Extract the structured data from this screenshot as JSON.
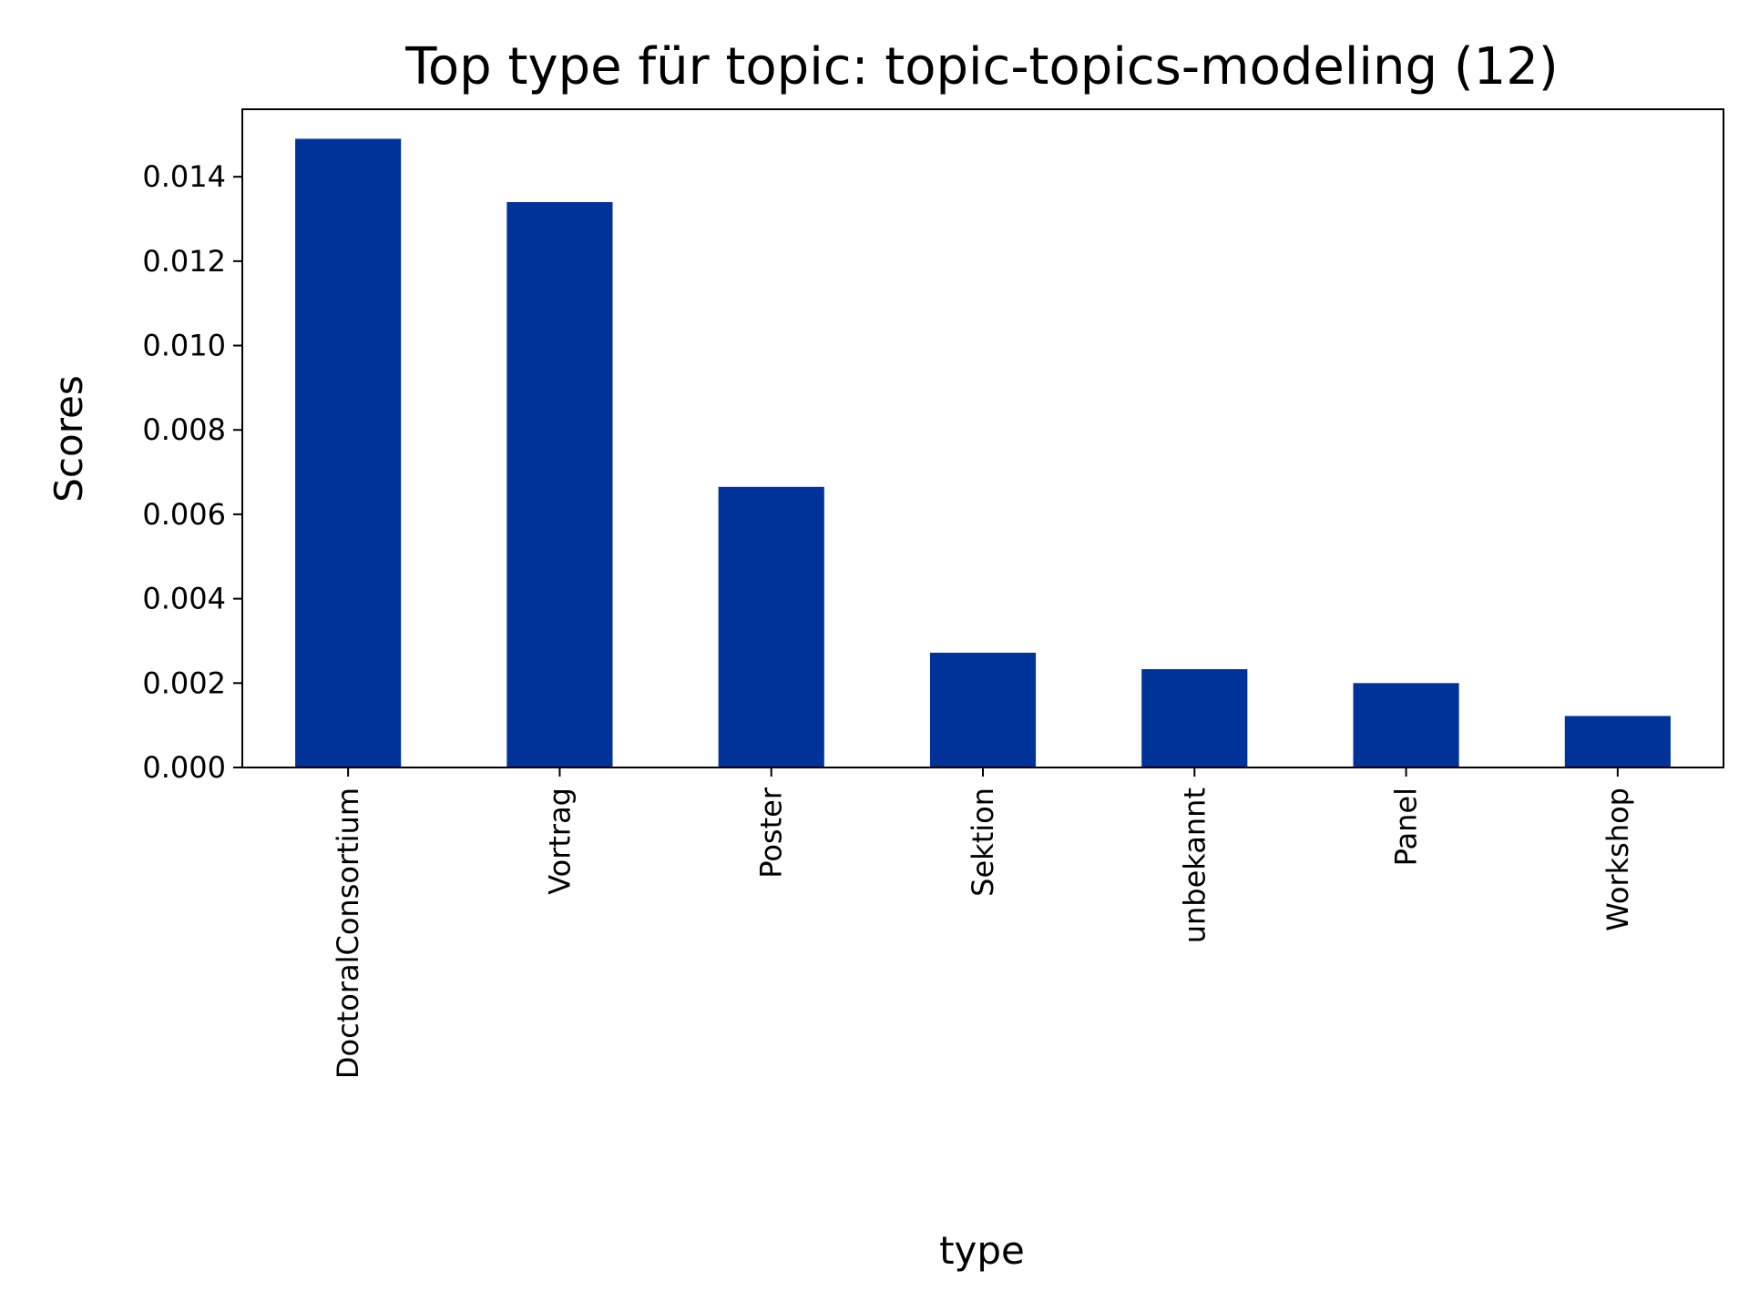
{
  "chart_data": {
    "type": "bar",
    "title": "Top type für topic: topic-topics-modeling (12)",
    "xlabel": "type",
    "ylabel": "Scores",
    "categories": [
      "DoctoralConsortium",
      "Vortrag",
      "Poster",
      "Sektion",
      "unbekannt",
      "Panel",
      "Workshop"
    ],
    "values": [
      0.0149,
      0.0134,
      0.00665,
      0.00272,
      0.00233,
      0.002,
      0.00122
    ],
    "ylim": [
      0,
      0.0156
    ],
    "yticks": [
      0,
      0.002,
      0.004,
      0.006,
      0.008,
      0.01,
      0.012,
      0.014
    ],
    "ytick_labels": [
      "0.000",
      "0.002",
      "0.004",
      "0.006",
      "0.008",
      "0.010",
      "0.012",
      "0.014"
    ],
    "grid": false,
    "bar_color": "#003399"
  }
}
